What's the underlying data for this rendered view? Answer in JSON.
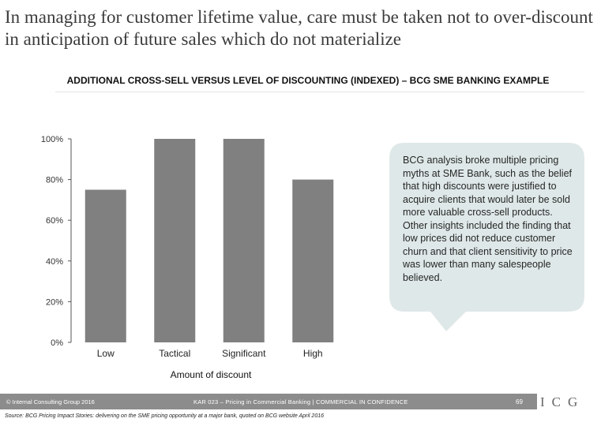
{
  "slide": {
    "title": "In managing for customer lifetime value, care must be taken not to over-discount in anticipation of future sales which do not materialize"
  },
  "chart_data": {
    "type": "bar",
    "title": "ADDITIONAL CROSS-SELL VERSUS LEVEL OF DISCOUNTING (INDEXED) – BCG SME BANKING EXAMPLE",
    "categories": [
      "Low",
      "Tactical",
      "Significant",
      "High"
    ],
    "values": [
      75,
      100,
      100,
      80
    ],
    "xlabel": "Amount of discount",
    "ylabel": "",
    "ylim": [
      0,
      100
    ],
    "yticks": [
      "0%",
      "20%",
      "40%",
      "60%",
      "80%",
      "100%"
    ],
    "ytick_values": [
      0,
      20,
      40,
      60,
      80,
      100
    ],
    "grid": false,
    "bar_color": "#808080"
  },
  "callout": {
    "text": "BCG analysis broke multiple pricing myths at SME Bank, such as the belief that high discounts were justified to acquire clients that would later be sold more valuable cross-sell products. Other insights included the finding that low prices did not reduce customer churn and that client sensitivity to price was lower than many salespeople believed.",
    "background": "#dfe8e8"
  },
  "footer": {
    "copyright": "© Internal Consulting Group 2016",
    "center": "KAR 023 – Pricing in Commercial Banking | COMMERCIAL IN CONFIDENCE",
    "page": "69",
    "logo": "ICG",
    "bar_color": "#8c8c8c"
  },
  "source": "Source: BCG Pricing Impact Stories: delivering on the SME pricing opportunity at a major bank, quoted on BCG website April 2016"
}
